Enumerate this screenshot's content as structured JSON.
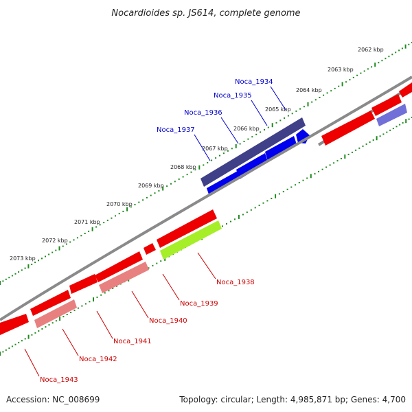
{
  "title": "Nocardioides sp. JS614, complete genome",
  "footer": {
    "accession": "Accession: NC_008699",
    "summary": "Topology: circular; Length: 4,985,871 bp; Genes: 4,700"
  },
  "colors": {
    "backbone": "#8a8a8a",
    "tick": "#1d8a1d",
    "forward_label": "#0000cc",
    "reverse_label": "#cc0000",
    "feature_red": "#ee0000",
    "feature_pink": "#e88080",
    "feature_green": "#a6ee28",
    "feature_blue": "#0000ee",
    "feature_navy": "#404088",
    "feature_lavender": "#7070d8"
  },
  "kbp_labels": [
    "2062 kbp",
    "2063 kbp",
    "2064 kbp",
    "2065 kbp",
    "2066 kbp",
    "2067 kbp",
    "2068 kbp",
    "2069 kbp",
    "2070 kbp",
    "2071 kbp",
    "2072 kbp",
    "2073 kbp"
  ],
  "forward_genes": [
    "Noca_1934",
    "Noca_1935",
    "Noca_1936",
    "Noca_1937"
  ],
  "reverse_genes": [
    "Noca_1938",
    "Noca_1939",
    "Noca_1940",
    "Noca_1941",
    "Noca_1942",
    "Noca_1943"
  ]
}
